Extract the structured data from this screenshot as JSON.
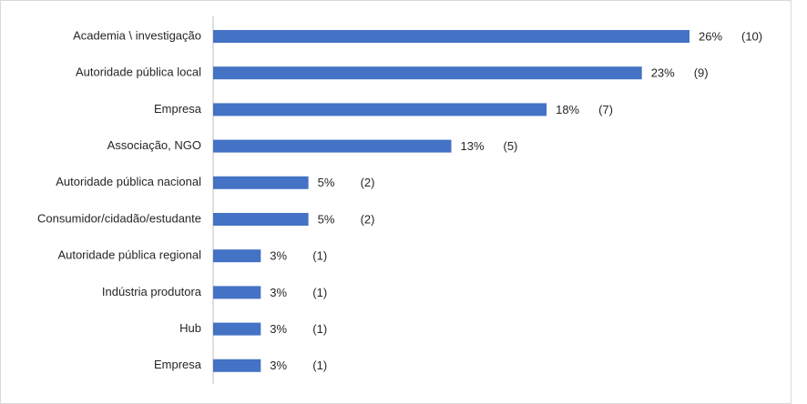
{
  "chart_data": {
    "type": "bar",
    "orientation": "horizontal",
    "categories": [
      "Academia \\ investigação",
      "Autoridade pública local",
      "Empresa",
      "Associação, NGO",
      "Autoridade pública nacional",
      "Consumidor/cidadão/estudante",
      "Autoridade pública regional",
      "Indústria produtora",
      "Hub",
      "Empresa"
    ],
    "values": [
      10,
      9,
      7,
      5,
      2,
      2,
      1,
      1,
      1,
      1
    ],
    "value_labels": [
      "(10)",
      "(9)",
      "(7)",
      "(5)",
      "(2)",
      "(2)",
      "(1)",
      "(1)",
      "(1)",
      "(1)"
    ],
    "percent_labels": [
      "26%",
      "23%",
      "18%",
      "13%",
      "5%",
      "5%",
      "3%",
      "3%",
      "3%",
      "3%"
    ],
    "color": "#4472c4",
    "xlim": [
      0,
      10
    ]
  }
}
